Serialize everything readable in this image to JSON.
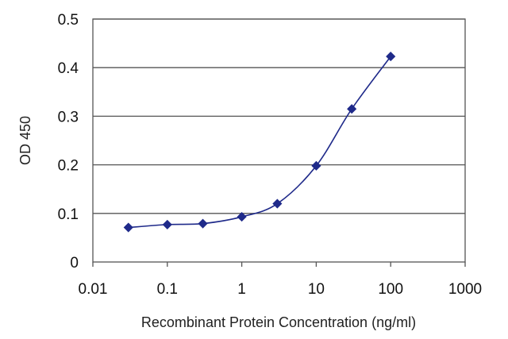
{
  "chart_data": {
    "type": "line",
    "title": "",
    "xlabel": "Recombinant Protein Concentration (ng/ml)",
    "ylabel": "OD 450",
    "x_scale": "log",
    "xlim": [
      0.01,
      1000
    ],
    "ylim": [
      0,
      0.5
    ],
    "x_ticks": [
      0.01,
      0.1,
      1,
      10,
      100,
      1000
    ],
    "x_tick_labels": [
      "0.01",
      "0.1",
      "1",
      "10",
      "100",
      "1000"
    ],
    "y_ticks": [
      0,
      0.1,
      0.2,
      0.3,
      0.4,
      0.5
    ],
    "y_tick_labels": [
      "0",
      "0.1",
      "0.2",
      "0.3",
      "0.4",
      "0.5"
    ],
    "grid": "horizontal",
    "legend": "none",
    "series": [
      {
        "color": "#1f2a8a",
        "marker": "diamond",
        "x": [
          0.03,
          0.1,
          0.3,
          1,
          3,
          10,
          30,
          100
        ],
        "y": [
          0.071,
          0.077,
          0.079,
          0.093,
          0.12,
          0.198,
          0.315,
          0.423
        ]
      }
    ]
  }
}
